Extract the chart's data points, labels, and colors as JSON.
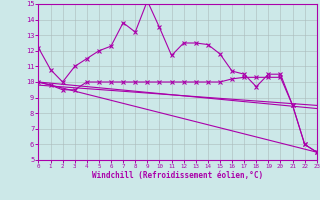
{
  "xlabel": "Windchill (Refroidissement éolien,°C)",
  "bg_color": "#cce8e8",
  "line_color": "#aa00aa",
  "grid_color": "#aabbbb",
  "xmin": 0,
  "xmax": 23,
  "ymin": 5,
  "ymax": 15,
  "series1_x": [
    0,
    1,
    2,
    3,
    4,
    5,
    6,
    7,
    8,
    9,
    10,
    11,
    12,
    13,
    14,
    15,
    16,
    17,
    18,
    19,
    20,
    21,
    22,
    23
  ],
  "series1_y": [
    12.2,
    10.8,
    10.0,
    11.0,
    11.5,
    12.0,
    12.3,
    13.8,
    13.2,
    15.2,
    13.5,
    11.7,
    12.5,
    12.5,
    12.4,
    11.8,
    10.7,
    10.5,
    9.7,
    10.5,
    10.5,
    8.5,
    6.0,
    5.5
  ],
  "series2_x": [
    0,
    1,
    2,
    3,
    4,
    5,
    6,
    7,
    8,
    9,
    10,
    11,
    12,
    13,
    14,
    15,
    16,
    17,
    18,
    19,
    20,
    21,
    22,
    23
  ],
  "series2_y": [
    10.0,
    9.8,
    9.5,
    9.5,
    10.0,
    10.0,
    10.0,
    10.0,
    10.0,
    10.0,
    10.0,
    10.0,
    10.0,
    10.0,
    10.0,
    10.0,
    10.2,
    10.3,
    10.3,
    10.3,
    10.3,
    8.5,
    6.0,
    5.5
  ],
  "series3_x": [
    0,
    23
  ],
  "series3_y": [
    10.0,
    8.3
  ],
  "series4_x": [
    0,
    23
  ],
  "series4_y": [
    10.0,
    5.5
  ],
  "series5_x": [
    0,
    23
  ],
  "series5_y": [
    9.8,
    8.5
  ]
}
